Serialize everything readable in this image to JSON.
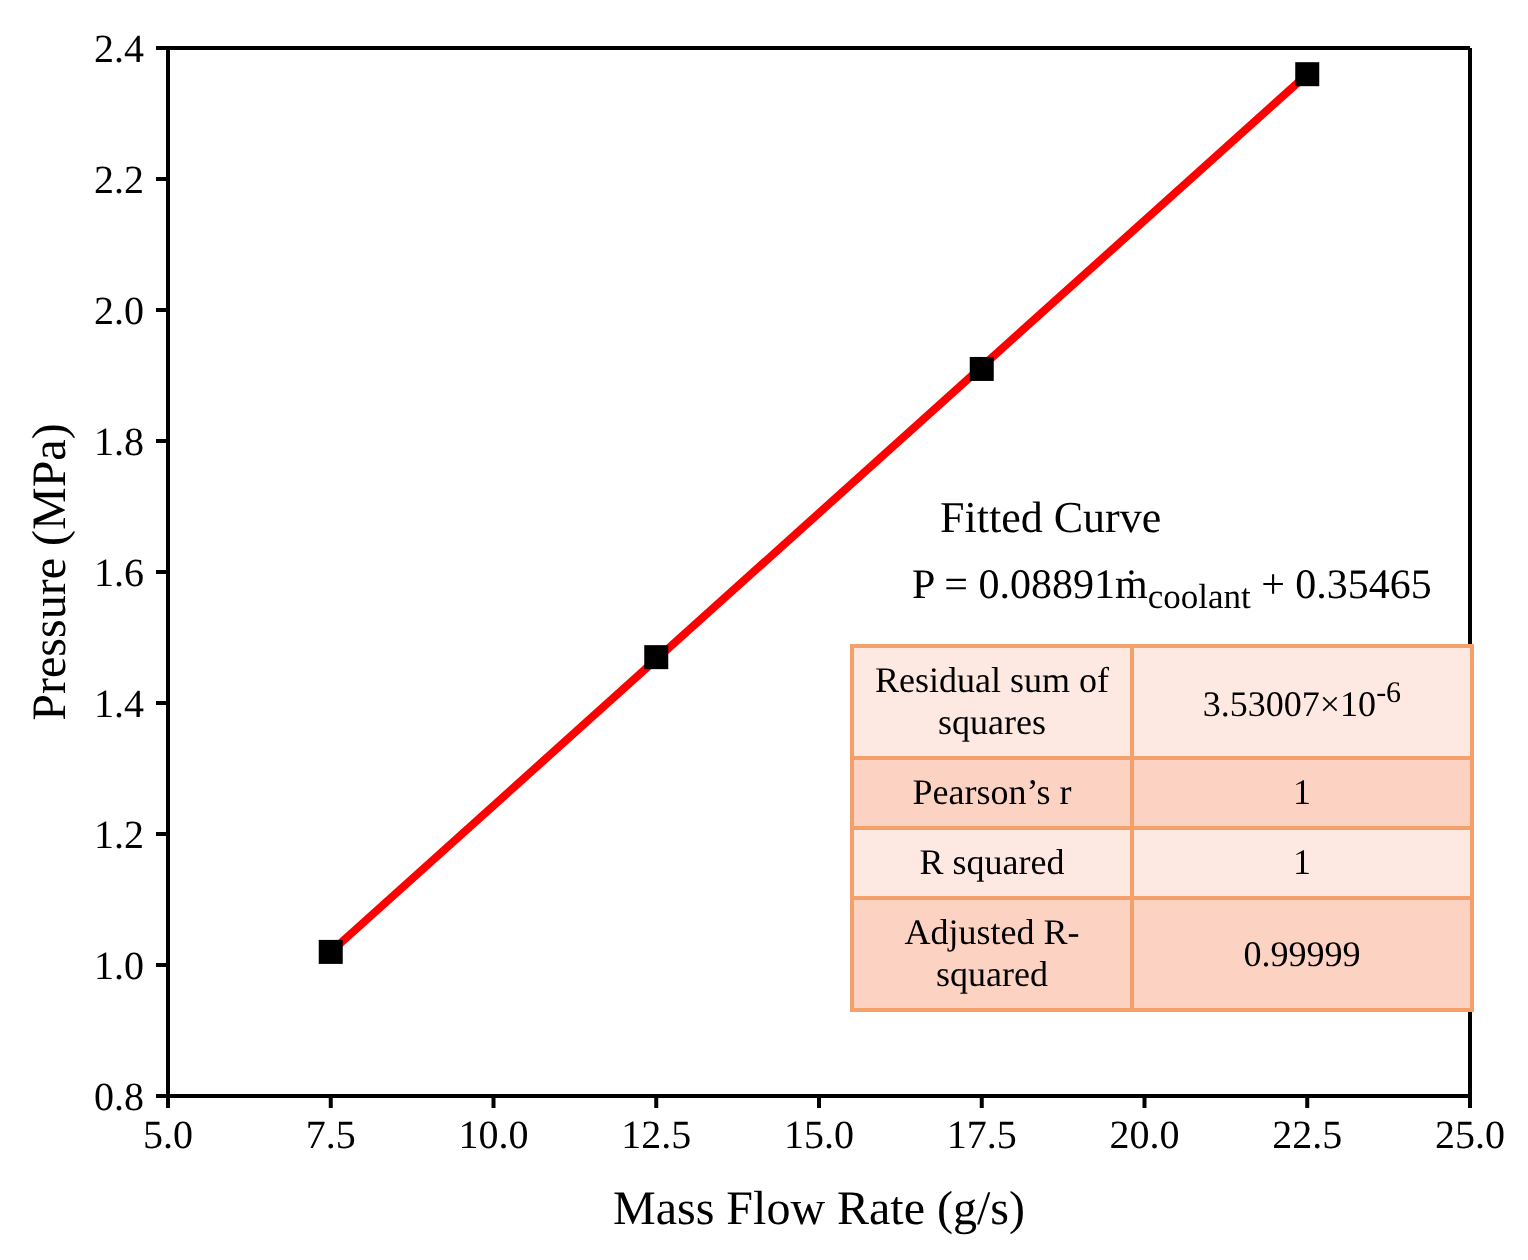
{
  "chart_data": {
    "type": "scatter",
    "xlabel": "Mass Flow Rate (g/s)",
    "ylabel": "Pressure (MPa)",
    "xlim": [
      5,
      25
    ],
    "xticks": [
      {
        "value": 5,
        "label": "5.0"
      },
      {
        "value": 7.5,
        "label": "7.5"
      },
      {
        "value": 10,
        "label": "10.0"
      },
      {
        "value": 12.5,
        "label": "12.5"
      },
      {
        "value": 15,
        "label": "15.0"
      },
      {
        "value": 17.5,
        "label": "17.5"
      },
      {
        "value": 20,
        "label": "20.0"
      },
      {
        "value": 22.5,
        "label": "22.5"
      },
      {
        "value": 25,
        "label": "25.0"
      }
    ],
    "ylim": [
      0.8,
      2.4
    ],
    "yticks": [
      {
        "value": 0.8,
        "label": "0.8"
      },
      {
        "value": 1.0,
        "label": "1.0"
      },
      {
        "value": 1.2,
        "label": "1.2"
      },
      {
        "value": 1.4,
        "label": "1.4"
      },
      {
        "value": 1.6,
        "label": "1.6"
      },
      {
        "value": 1.8,
        "label": "1.8"
      },
      {
        "value": 2.0,
        "label": "2.0"
      },
      {
        "value": 2.2,
        "label": "2.2"
      },
      {
        "value": 2.4,
        "label": "2.4"
      }
    ],
    "grid": false,
    "legend": false,
    "series": [
      {
        "type": "line",
        "color": "#ff0000",
        "marker": "none",
        "line_style": "solid",
        "x": [
          7.5,
          22.5
        ],
        "values": [
          1.02,
          2.36
        ]
      },
      {
        "color": "#000000",
        "marker": "square",
        "x": [
          7.5,
          12.5,
          17.5,
          22.5
        ],
        "values": [
          1.02,
          1.47,
          1.91,
          2.36
        ]
      }
    ],
    "annotations": [
      "Fitted Curve",
      "P = 0.08891ṁ$_{coolant}$ + 0.35465",
      "Residual sum of squares",
      "3.53007×10$^{-6}$",
      "Pearson’s r",
      "1",
      "R squared",
      "1",
      "Adjusted R-squared",
      "0.99999"
    ]
  }
}
